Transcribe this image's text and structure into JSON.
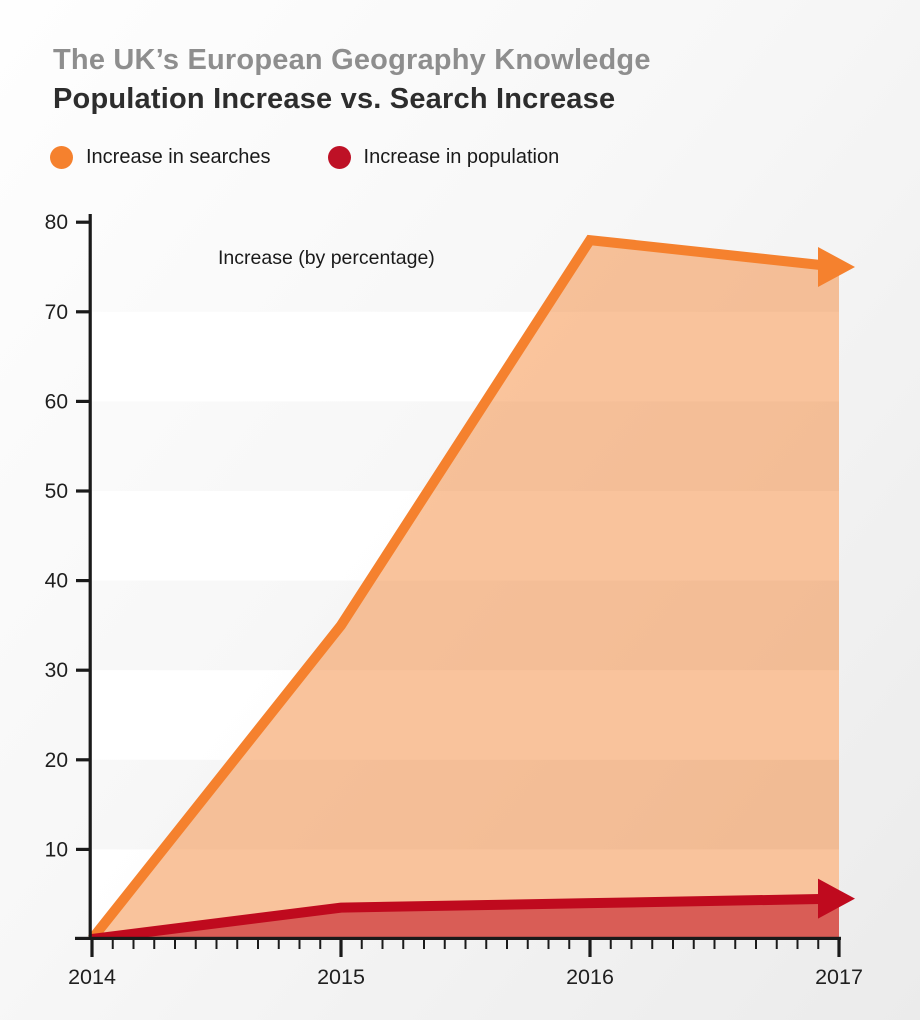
{
  "header": {
    "subtitle": "The UK’s European Geography Knowledge",
    "title": "Population Increase vs. Search Increase"
  },
  "legend": {
    "items": [
      {
        "label": "Increase in searches",
        "color": "#F5812E"
      },
      {
        "label": "Increase in population",
        "color": "#BE1126"
      }
    ]
  },
  "colors": {
    "axis": "#1a1a1a",
    "tick_label": "#1f1f1f",
    "title_gray": "#8e8e8e",
    "title_dark": "#2d2d2d",
    "band_white": "rgba(255,255,255,0.9)"
  },
  "chart_data": {
    "type": "area",
    "title": "Population Increase vs. Search Increase",
    "subtitle": "The UK’s European Geography Knowledge",
    "ylabel": "Increase (by percentage)",
    "xlabel": "",
    "categories": [
      "2014",
      "2015",
      "2016",
      "2017"
    ],
    "series": [
      {
        "name": "Increase in searches",
        "values": [
          0,
          35,
          78,
          75
        ],
        "color": "#F5812E",
        "fill": "rgba(245,129,46,0.47)"
      },
      {
        "name": "Increase in population",
        "values": [
          0,
          3.5,
          4,
          4.5
        ],
        "color": "#BF0A1E",
        "fill": "rgba(191,10,30,0.55)"
      }
    ],
    "ylim": [
      0,
      80
    ],
    "yticks": [
      10,
      20,
      30,
      40,
      50,
      60,
      70,
      80
    ],
    "minor_xticks_per_interval": 11,
    "grid": "alternating horizontal bands",
    "legend_position": "top-left",
    "line_end_marker": "right-arrowhead"
  }
}
